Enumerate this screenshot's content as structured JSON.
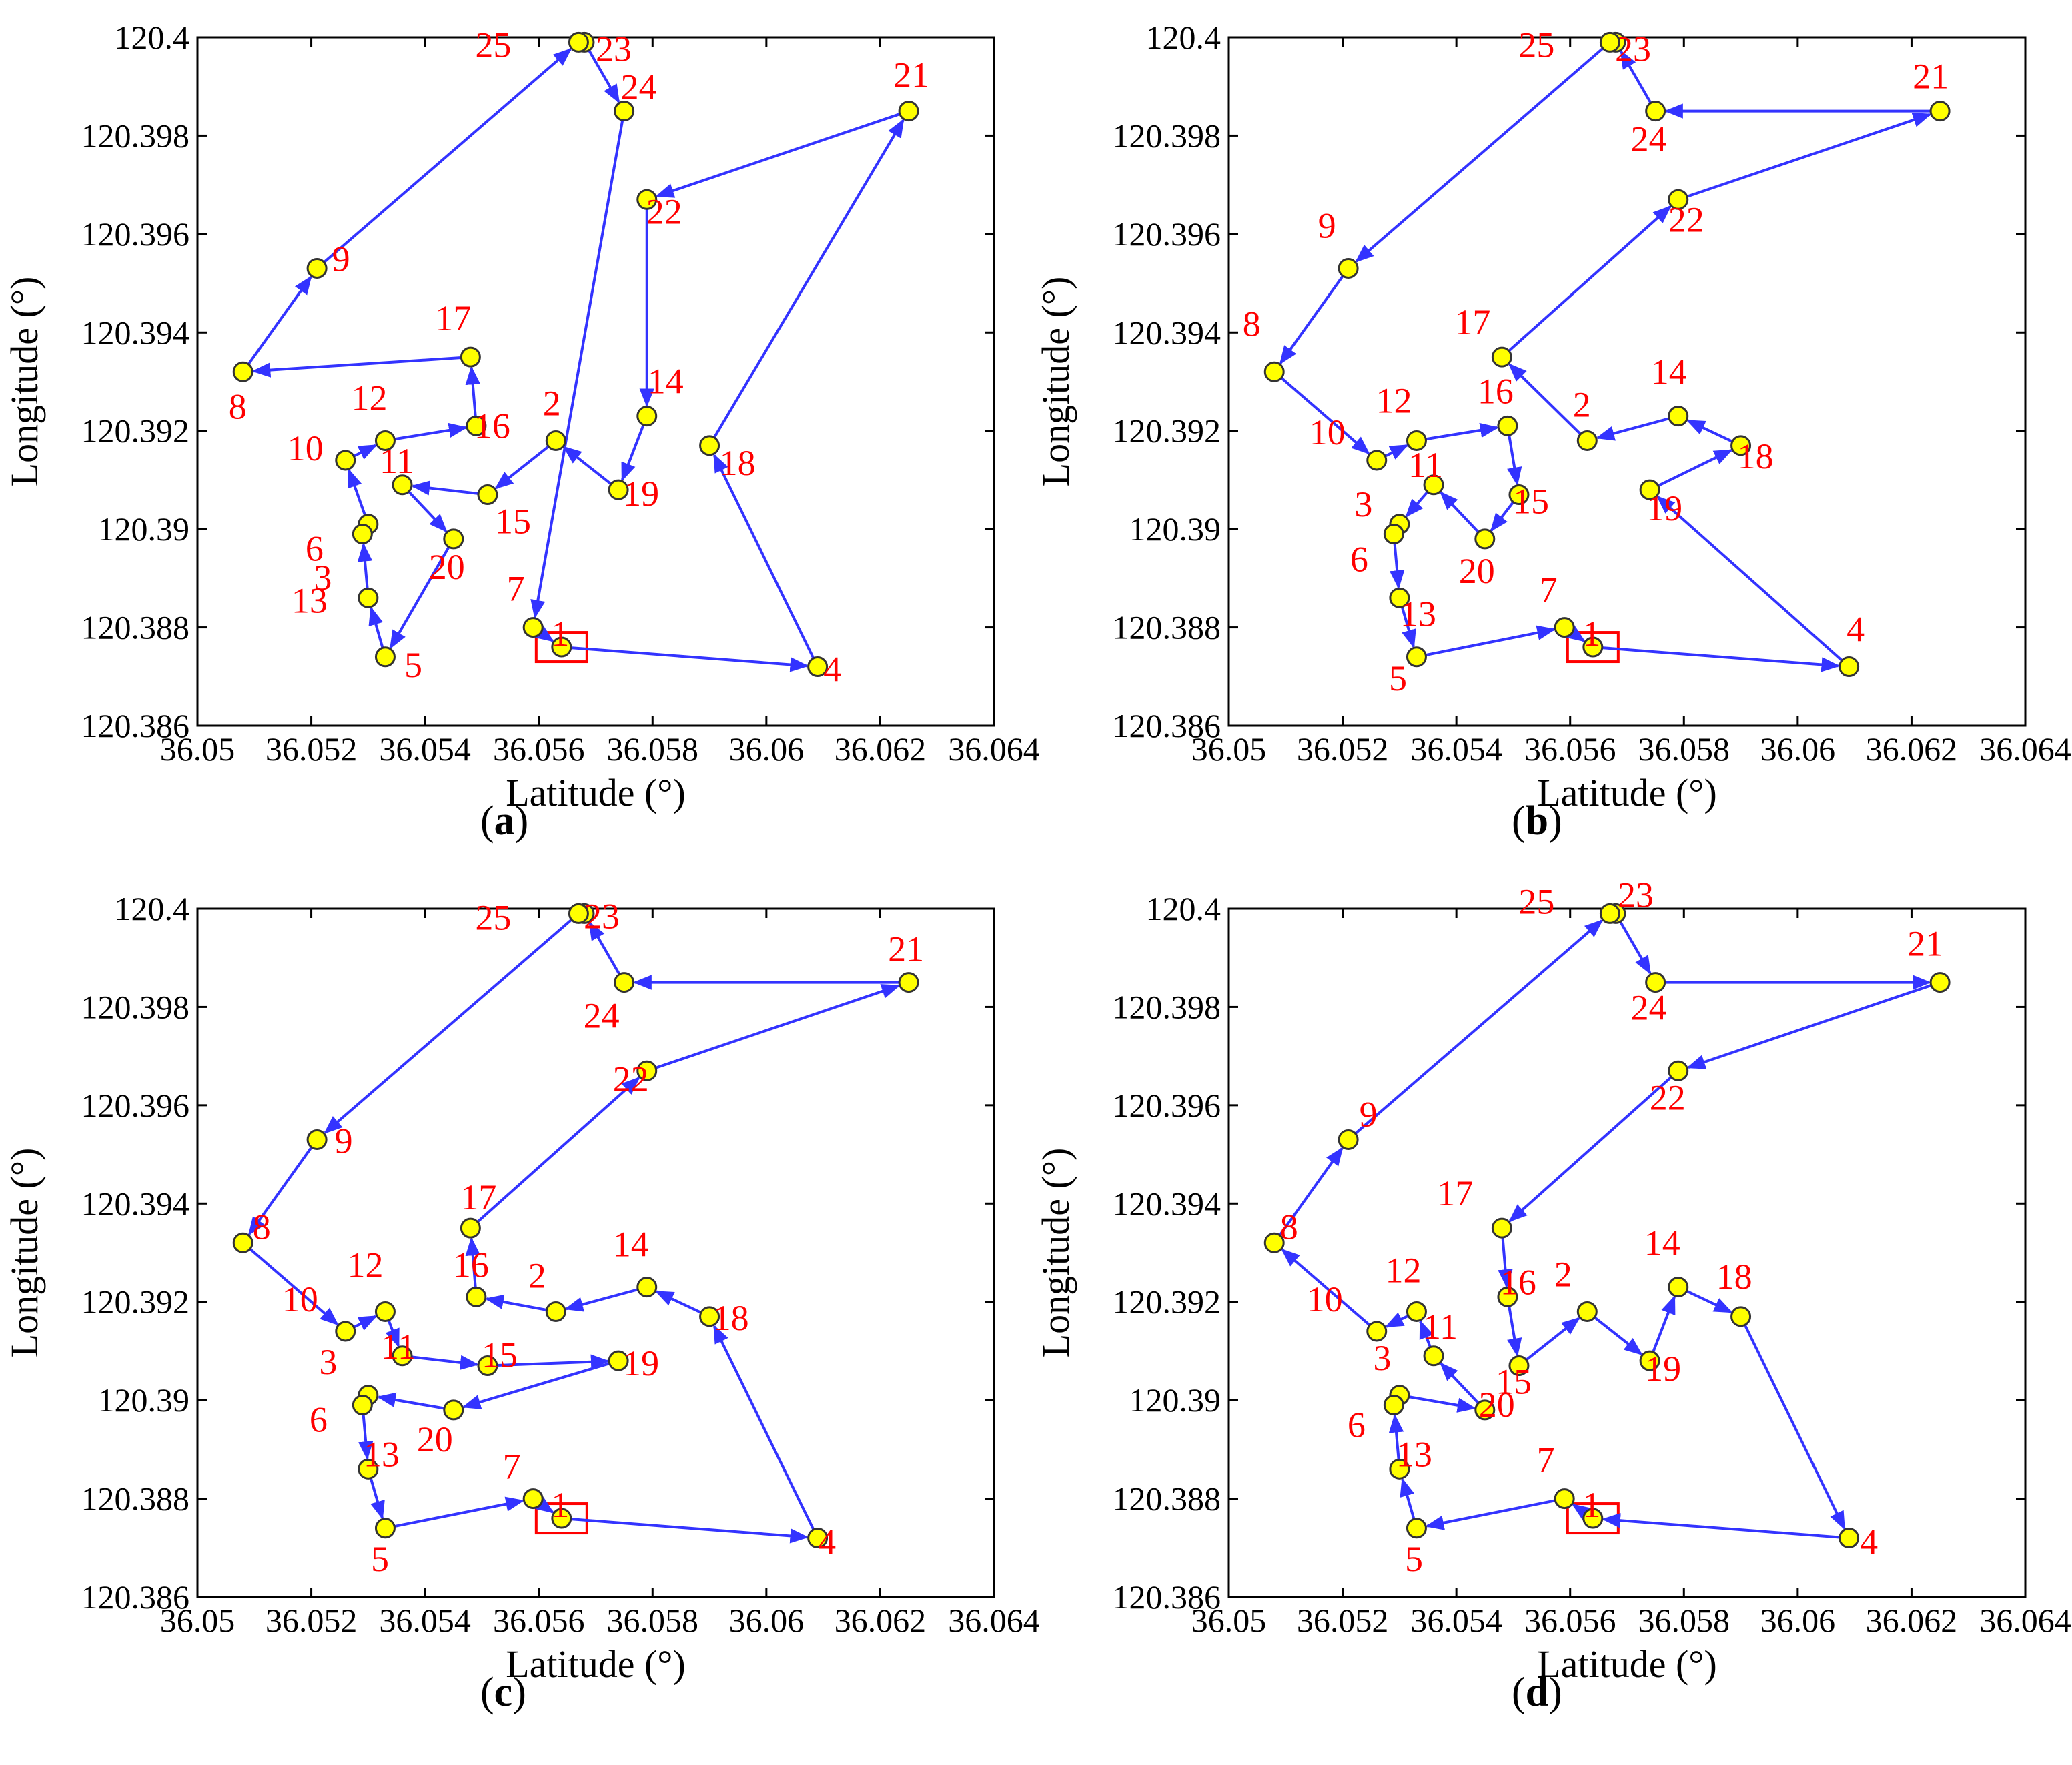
{
  "colors": {
    "route": "#3333ff",
    "node_fill": "#ffff00",
    "node_stroke": "#333333",
    "label": "#ff0000",
    "depot": "#ff0000"
  },
  "chart_data": [
    {
      "type": "scatter",
      "caption": "a",
      "xlabel": "Latitude (°)",
      "ylabel": "Longitude (°)",
      "xlim": [
        36.05,
        36.064
      ],
      "ylim": [
        120.386,
        120.4
      ],
      "xticks": [
        "36.05",
        "36.052",
        "36.054",
        "36.056",
        "36.058",
        "36.06",
        "36.062",
        "36.064"
      ],
      "yticks": [
        "120.386",
        "120.388",
        "120.39",
        "120.392",
        "120.394",
        "120.396",
        "120.398",
        "120.4"
      ],
      "depot": 1,
      "route": [
        1,
        4,
        18,
        21,
        22,
        14,
        19,
        2,
        15,
        11,
        20,
        5,
        13,
        6,
        3,
        10,
        12,
        16,
        17,
        8,
        9,
        25,
        23,
        24,
        7,
        1
      ]
    },
    {
      "type": "scatter",
      "caption": "b",
      "xlabel": "Latitude (°)",
      "ylabel": "Longitude (°)",
      "xlim": [
        36.05,
        36.064
      ],
      "ylim": [
        120.386,
        120.4
      ],
      "xticks": [
        "36.05",
        "36.052",
        "36.054",
        "36.056",
        "36.058",
        "36.06",
        "36.062",
        "36.064"
      ],
      "yticks": [
        "120.386",
        "120.388",
        "120.39",
        "120.392",
        "120.394",
        "120.396",
        "120.398",
        "120.4"
      ],
      "depot": 1,
      "route": [
        1,
        4,
        19,
        18,
        14,
        2,
        17,
        22,
        21,
        24,
        23,
        25,
        9,
        8,
        10,
        12,
        16,
        15,
        20,
        11,
        3,
        6,
        13,
        5,
        7,
        1
      ]
    },
    {
      "type": "scatter",
      "caption": "c",
      "xlabel": "Latitude (°)",
      "ylabel": "Longitude (°)",
      "xlim": [
        36.05,
        36.064
      ],
      "ylim": [
        120.386,
        120.4
      ],
      "xticks": [
        "36.05",
        "36.052",
        "36.054",
        "36.056",
        "36.058",
        "36.06",
        "36.062",
        "36.064"
      ],
      "yticks": [
        "120.386",
        "120.388",
        "120.39",
        "120.392",
        "120.394",
        "120.396",
        "120.398",
        "120.4"
      ],
      "depot": 1,
      "route": [
        1,
        4,
        18,
        14,
        2,
        16,
        17,
        22,
        21,
        24,
        23,
        25,
        9,
        8,
        10,
        12,
        11,
        15,
        19,
        20,
        3,
        6,
        13,
        5,
        7,
        1
      ]
    },
    {
      "type": "scatter",
      "caption": "d",
      "xlabel": "Latitude (°)",
      "ylabel": "Longitude (°)",
      "xlim": [
        36.05,
        36.064
      ],
      "ylim": [
        120.386,
        120.4
      ],
      "xticks": [
        "36.05",
        "36.052",
        "36.054",
        "36.056",
        "36.058",
        "36.06",
        "36.062",
        "36.064"
      ],
      "yticks": [
        "120.386",
        "120.388",
        "120.39",
        "120.392",
        "120.394",
        "120.396",
        "120.398",
        "120.4"
      ],
      "depot": 1,
      "route": [
        1,
        7,
        5,
        13,
        6,
        3,
        20,
        11,
        12,
        10,
        8,
        9,
        25,
        23,
        24,
        21,
        22,
        17,
        16,
        15,
        2,
        19,
        14,
        18,
        4,
        1
      ]
    }
  ],
  "nodes": [
    {
      "id": 1,
      "x": 36.0564,
      "y": 120.3876
    },
    {
      "id": 2,
      "x": 36.0563,
      "y": 120.3918
    },
    {
      "id": 3,
      "x": 36.053,
      "y": 120.3901
    },
    {
      "id": 4,
      "x": 36.0609,
      "y": 120.3872
    },
    {
      "id": 5,
      "x": 36.0533,
      "y": 120.3874
    },
    {
      "id": 6,
      "x": 36.0529,
      "y": 120.3899
    },
    {
      "id": 7,
      "x": 36.0559,
      "y": 120.388
    },
    {
      "id": 8,
      "x": 36.0508,
      "y": 120.3932
    },
    {
      "id": 9,
      "x": 36.0521,
      "y": 120.3953
    },
    {
      "id": 10,
      "x": 36.0526,
      "y": 120.3914
    },
    {
      "id": 11,
      "x": 36.0536,
      "y": 120.3909
    },
    {
      "id": 12,
      "x": 36.0533,
      "y": 120.3918
    },
    {
      "id": 13,
      "x": 36.053,
      "y": 120.3886
    },
    {
      "id": 14,
      "x": 36.0579,
      "y": 120.3923
    },
    {
      "id": 15,
      "x": 36.0551,
      "y": 120.3907
    },
    {
      "id": 16,
      "x": 36.0549,
      "y": 120.3921
    },
    {
      "id": 17,
      "x": 36.0548,
      "y": 120.3935
    },
    {
      "id": 18,
      "x": 36.059,
      "y": 120.3917
    },
    {
      "id": 19,
      "x": 36.0574,
      "y": 120.3908
    },
    {
      "id": 20,
      "x": 36.0545,
      "y": 120.3898
    },
    {
      "id": 21,
      "x": 36.0625,
      "y": 120.3985
    },
    {
      "id": 22,
      "x": 36.0579,
      "y": 120.3967
    },
    {
      "id": 23,
      "x": 36.0568,
      "y": 120.3999
    },
    {
      "id": 24,
      "x": 36.0575,
      "y": 120.3985
    },
    {
      "id": 25,
      "x": 36.0567,
      "y": 120.3999
    }
  ]
}
